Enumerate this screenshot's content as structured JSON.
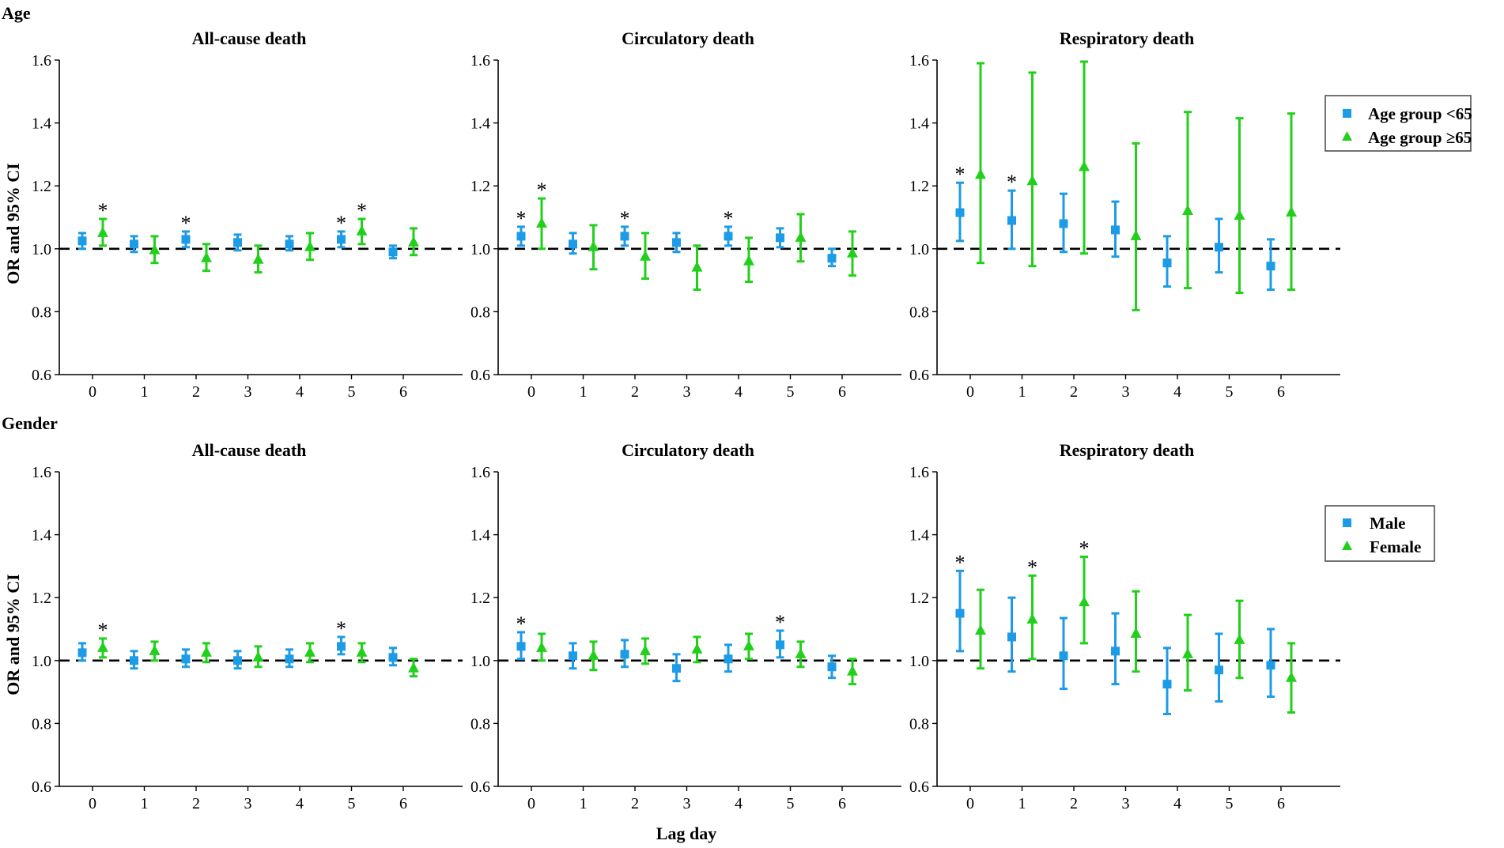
{
  "chart_data": {
    "type": "errorbar",
    "x_axis_label": "Lag day",
    "y_axis_label": "OR and 95% CI",
    "ylim": [
      0.6,
      1.6
    ],
    "yticks": [
      "0.6",
      "0.8",
      "1.0",
      "1.2",
      "1.4",
      "1.6"
    ],
    "categories": [
      "0",
      "1",
      "2",
      "3",
      "4",
      "5",
      "6"
    ],
    "reference_line": 1.0,
    "significance_marker": "*",
    "colors": {
      "series1": "#1c9be6",
      "series2": "#22d01c",
      "refline": "#000000"
    },
    "rows": [
      {
        "label": "Age",
        "legend": [
          "Age group <65",
          "Age group ≥65"
        ],
        "panels": [
          {
            "title": "All-cause death",
            "series": [
              {
                "name": "Age group <65",
                "marker": "square",
                "est": [
                  1.025,
                  1.015,
                  1.03,
                  1.02,
                  1.015,
                  1.03,
                  0.99
                ],
                "lo": [
                  1.0,
                  0.99,
                  1.005,
                  0.995,
                  0.995,
                  1.005,
                  0.97
                ],
                "hi": [
                  1.05,
                  1.04,
                  1.055,
                  1.045,
                  1.04,
                  1.055,
                  1.01
                ],
                "sig": [
                  false,
                  false,
                  true,
                  false,
                  false,
                  true,
                  false
                ]
              },
              {
                "name": "Age group ≥65",
                "marker": "triangle",
                "est": [
                  1.05,
                  0.995,
                  0.97,
                  0.965,
                  1.005,
                  1.055,
                  1.02
                ],
                "lo": [
                  1.01,
                  0.955,
                  0.93,
                  0.925,
                  0.965,
                  1.015,
                  0.98
                ],
                "hi": [
                  1.095,
                  1.04,
                  1.015,
                  1.01,
                  1.05,
                  1.095,
                  1.065
                ],
                "sig": [
                  true,
                  false,
                  false,
                  false,
                  false,
                  true,
                  false
                ]
              }
            ]
          },
          {
            "title": "Circulatory death",
            "series": [
              {
                "name": "Age group <65",
                "marker": "square",
                "est": [
                  1.04,
                  1.015,
                  1.04,
                  1.02,
                  1.04,
                  1.035,
                  0.97
                ],
                "lo": [
                  1.01,
                  0.985,
                  1.01,
                  0.99,
                  1.01,
                  1.005,
                  0.945
                ],
                "hi": [
                  1.07,
                  1.05,
                  1.07,
                  1.05,
                  1.07,
                  1.065,
                  1.0
                ],
                "sig": [
                  true,
                  false,
                  true,
                  false,
                  true,
                  false,
                  false
                ]
              },
              {
                "name": "Age group ≥65",
                "marker": "triangle",
                "est": [
                  1.08,
                  1.005,
                  0.975,
                  0.94,
                  0.96,
                  1.035,
                  0.985
                ],
                "lo": [
                  1.0,
                  0.935,
                  0.905,
                  0.87,
                  0.895,
                  0.96,
                  0.915
                ],
                "hi": [
                  1.16,
                  1.075,
                  1.05,
                  1.01,
                  1.035,
                  1.11,
                  1.055
                ],
                "sig": [
                  true,
                  false,
                  false,
                  false,
                  false,
                  false,
                  false
                ]
              }
            ]
          },
          {
            "title": "Respiratory death",
            "series": [
              {
                "name": "Age group <65",
                "marker": "square",
                "est": [
                  1.115,
                  1.09,
                  1.08,
                  1.06,
                  0.955,
                  1.005,
                  0.945
                ],
                "lo": [
                  1.025,
                  1.0,
                  0.99,
                  0.975,
                  0.88,
                  0.925,
                  0.87
                ],
                "hi": [
                  1.21,
                  1.185,
                  1.175,
                  1.15,
                  1.04,
                  1.095,
                  1.03
                ],
                "sig": [
                  true,
                  true,
                  false,
                  false,
                  false,
                  false,
                  false
                ]
              },
              {
                "name": "Age group ≥65",
                "marker": "triangle",
                "est": [
                  1.235,
                  1.215,
                  1.26,
                  1.04,
                  1.12,
                  1.105,
                  1.115
                ],
                "lo": [
                  0.955,
                  0.945,
                  0.985,
                  0.805,
                  0.875,
                  0.86,
                  0.87
                ],
                "hi": [
                  1.59,
                  1.56,
                  1.595,
                  1.335,
                  1.435,
                  1.415,
                  1.43
                ],
                "sig": [
                  false,
                  false,
                  false,
                  false,
                  false,
                  false,
                  false
                ]
              }
            ]
          }
        ]
      },
      {
        "label": "Gender",
        "legend": [
          "Male",
          "Female"
        ],
        "panels": [
          {
            "title": "All-cause death",
            "series": [
              {
                "name": "Male",
                "marker": "square",
                "est": [
                  1.025,
                  1.0,
                  1.005,
                  1.0,
                  1.005,
                  1.045,
                  1.01
                ],
                "lo": [
                  1.0,
                  0.975,
                  0.98,
                  0.975,
                  0.98,
                  1.02,
                  0.985
                ],
                "hi": [
                  1.055,
                  1.03,
                  1.035,
                  1.03,
                  1.035,
                  1.075,
                  1.04
                ],
                "sig": [
                  false,
                  false,
                  false,
                  false,
                  false,
                  true,
                  false
                ]
              },
              {
                "name": "Female",
                "marker": "triangle",
                "est": [
                  1.04,
                  1.03,
                  1.025,
                  1.01,
                  1.025,
                  1.025,
                  0.975
                ],
                "lo": [
                  1.01,
                  1.0,
                  0.995,
                  0.98,
                  0.995,
                  0.995,
                  0.95
                ],
                "hi": [
                  1.07,
                  1.06,
                  1.055,
                  1.045,
                  1.055,
                  1.055,
                  1.005
                ],
                "sig": [
                  true,
                  false,
                  false,
                  false,
                  false,
                  false,
                  false
                ]
              }
            ]
          },
          {
            "title": "Circulatory death",
            "series": [
              {
                "name": "Male",
                "marker": "square",
                "est": [
                  1.045,
                  1.015,
                  1.02,
                  0.975,
                  1.005,
                  1.05,
                  0.98
                ],
                "lo": [
                  1.005,
                  0.975,
                  0.98,
                  0.935,
                  0.965,
                  1.01,
                  0.945
                ],
                "hi": [
                  1.09,
                  1.055,
                  1.065,
                  1.02,
                  1.05,
                  1.095,
                  1.015
                ],
                "sig": [
                  true,
                  false,
                  false,
                  false,
                  false,
                  true,
                  false
                ]
              },
              {
                "name": "Female",
                "marker": "triangle",
                "est": [
                  1.04,
                  1.015,
                  1.03,
                  1.035,
                  1.045,
                  1.02,
                  0.965
                ],
                "lo": [
                  1.0,
                  0.97,
                  0.99,
                  0.995,
                  1.005,
                  0.98,
                  0.925
                ],
                "hi": [
                  1.085,
                  1.06,
                  1.07,
                  1.075,
                  1.085,
                  1.06,
                  1.005
                ],
                "sig": [
                  false,
                  false,
                  false,
                  false,
                  false,
                  false,
                  false
                ]
              }
            ]
          },
          {
            "title": "Respiratory death",
            "series": [
              {
                "name": "Male",
                "marker": "square",
                "est": [
                  1.15,
                  1.075,
                  1.015,
                  1.03,
                  0.925,
                  0.97,
                  0.985
                ],
                "lo": [
                  1.03,
                  0.965,
                  0.91,
                  0.925,
                  0.83,
                  0.87,
                  0.885
                ],
                "hi": [
                  1.285,
                  1.2,
                  1.135,
                  1.15,
                  1.04,
                  1.085,
                  1.1
                ],
                "sig": [
                  true,
                  false,
                  false,
                  false,
                  false,
                  false,
                  false
                ]
              },
              {
                "name": "Female",
                "marker": "triangle",
                "est": [
                  1.095,
                  1.13,
                  1.185,
                  1.085,
                  1.02,
                  1.065,
                  0.945
                ],
                "lo": [
                  0.975,
                  1.005,
                  1.055,
                  0.965,
                  0.905,
                  0.945,
                  0.835
                ],
                "hi": [
                  1.225,
                  1.27,
                  1.33,
                  1.22,
                  1.145,
                  1.19,
                  1.055
                ],
                "sig": [
                  false,
                  true,
                  true,
                  false,
                  false,
                  false,
                  false
                ]
              }
            ]
          }
        ]
      }
    ]
  }
}
